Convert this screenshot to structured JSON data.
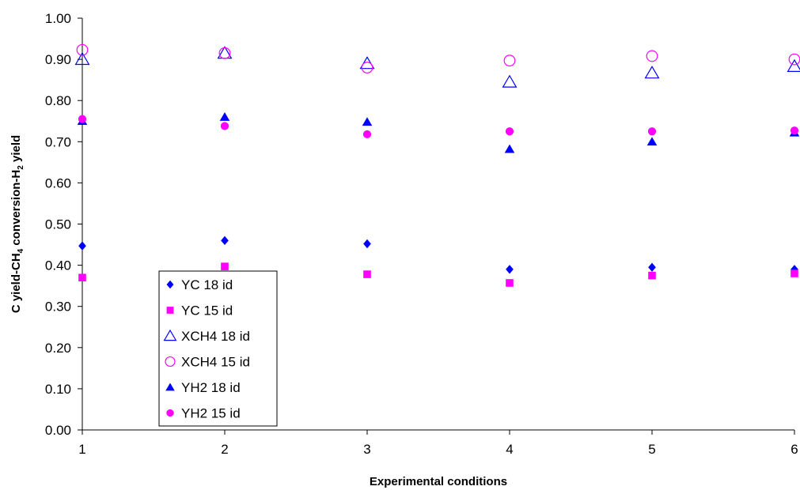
{
  "chart_data": {
    "type": "scatter",
    "title": "",
    "xlabel": "Experimental conditions",
    "ylabel_parts": {
      "a": "C yield-CH",
      "a_sub": "4",
      "b": " conversion-H",
      "b_sub": "2",
      "c": " yield"
    },
    "x": [
      1,
      2,
      3,
      4,
      5,
      6
    ],
    "xlim": [
      1,
      6
    ],
    "ylim": [
      0,
      1
    ],
    "x_ticks": [
      "1",
      "2",
      "3",
      "4",
      "5",
      "6"
    ],
    "y_ticks": [
      "0.00",
      "0.10",
      "0.20",
      "0.30",
      "0.40",
      "0.50",
      "0.60",
      "0.70",
      "0.80",
      "0.90",
      "1.00"
    ],
    "grid": false,
    "legend_position": "lower-left",
    "series": [
      {
        "name": "YC 18 id",
        "marker": "diamond",
        "filled": true,
        "color": "#0000FF",
        "values": [
          0.447,
          0.46,
          0.452,
          0.39,
          0.395,
          0.39
        ]
      },
      {
        "name": "YC 15 id",
        "marker": "square",
        "filled": true,
        "color": "#FF00FF",
        "values": [
          0.37,
          0.397,
          0.378,
          0.357,
          0.375,
          0.38
        ]
      },
      {
        "name": "XCH4 18 id",
        "marker": "triangle",
        "filled": false,
        "color": "#0000FF",
        "values": [
          0.9,
          0.915,
          0.89,
          0.845,
          0.867,
          0.883
        ]
      },
      {
        "name": "XCH4 15 id",
        "marker": "circle",
        "filled": false,
        "color": "#FF00FF",
        "values": [
          0.923,
          0.915,
          0.88,
          0.897,
          0.908,
          0.9
        ]
      },
      {
        "name": "YH2 18 id",
        "marker": "triangle",
        "filled": true,
        "color": "#0000FF",
        "values": [
          0.75,
          0.76,
          0.748,
          0.682,
          0.7,
          0.722
        ]
      },
      {
        "name": "YH2 15 id",
        "marker": "circle",
        "filled": true,
        "color": "#FF00FF",
        "values": [
          0.755,
          0.738,
          0.718,
          0.725,
          0.725,
          0.727
        ]
      }
    ]
  }
}
